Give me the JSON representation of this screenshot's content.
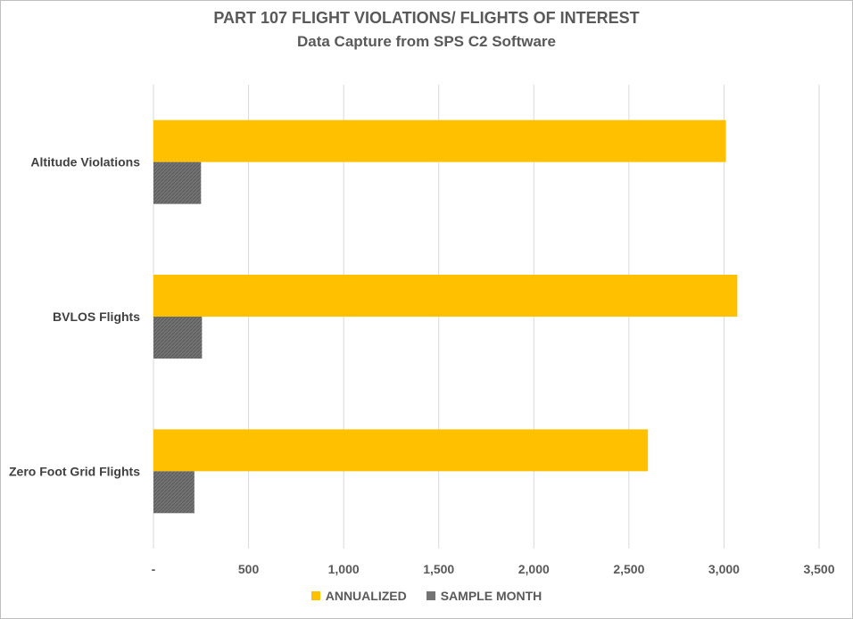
{
  "chart_data": {
    "type": "bar",
    "orientation": "horizontal",
    "title": "PART 107 FLIGHT VIOLATIONS/ FLIGHTS OF INTEREST",
    "subtitle": "Data Capture from SPS C2 Software",
    "categories": [
      "Altitude Violations",
      "BVLOS Flights",
      "Zero Foot Grid Flights"
    ],
    "series": [
      {
        "name": "ANNUALIZED",
        "color": "#FFC000",
        "values": [
          3010,
          3070,
          2600
        ]
      },
      {
        "name": "SAMPLE MONTH",
        "color": "#737373",
        "values": [
          250,
          255,
          215
        ]
      }
    ],
    "xlim": [
      0,
      3500
    ],
    "xticks": [
      0,
      500,
      1000,
      1500,
      2000,
      2500,
      3000,
      3500
    ],
    "xtick_labels": [
      "-",
      "500",
      "1,000",
      "1,500",
      "2,000",
      "2,500",
      "3,000",
      "3,500"
    ],
    "grid": true,
    "legend": "bottom"
  }
}
